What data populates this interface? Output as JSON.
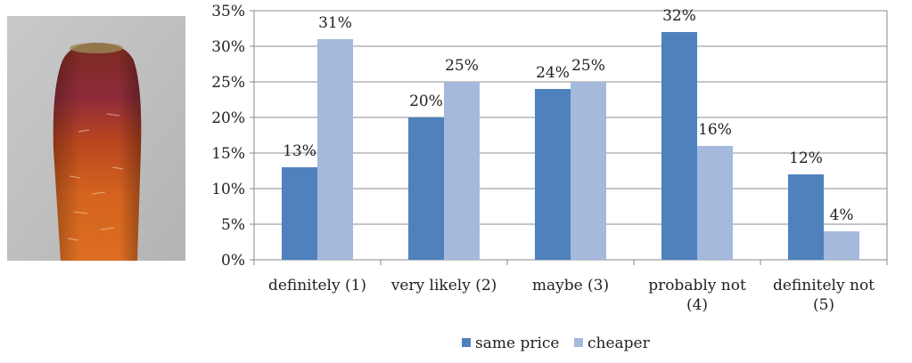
{
  "colors": {
    "same_price": "#4f81bd",
    "cheaper": "#a5b9dc",
    "axis": "#888888",
    "grid": "#8c8c8c"
  },
  "photo": {
    "subject": "carrot-photo"
  },
  "chart_data": {
    "type": "bar",
    "categories": [
      [
        "definitely (1)"
      ],
      [
        "very likely (2)"
      ],
      [
        "maybe (3)"
      ],
      [
        "probably not",
        "(4)"
      ],
      [
        "definitely not",
        "(5)"
      ]
    ],
    "series": [
      {
        "name": "same price",
        "values": [
          13,
          20,
          24,
          32,
          12
        ],
        "labels": [
          "13%",
          "20%",
          "24%",
          "32%",
          "12%"
        ]
      },
      {
        "name": "cheaper",
        "values": [
          31,
          25,
          25,
          16,
          4
        ],
        "labels": [
          "31%",
          "25%",
          "25%",
          "16%",
          "4%"
        ]
      }
    ],
    "ylim": [
      0,
      35
    ],
    "yticks": [
      "0%",
      "5%",
      "10%",
      "15%",
      "20%",
      "25%",
      "30%",
      "35%"
    ],
    "grid": true,
    "legend": "bottom"
  }
}
